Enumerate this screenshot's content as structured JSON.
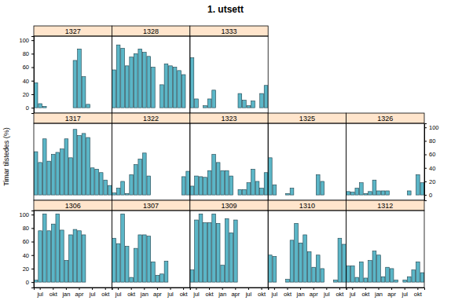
{
  "chart_data": {
    "type": "bar",
    "title": "1. utsett",
    "y_label": "Timar tilstedes (%)",
    "color": "#5bb6c7",
    "categories": [
      null,
      "jul",
      null,
      null,
      "okt",
      null,
      null,
      "jan",
      null,
      null,
      "apr",
      null,
      null,
      "jul",
      null,
      null,
      "okt",
      null
    ],
    "ylim": [
      -8,
      106
    ],
    "yticks": [
      0,
      20,
      40,
      60,
      80,
      100
    ],
    "panels": [
      {
        "name": "1327",
        "values": [
          37,
          6,
          2,
          null,
          null,
          null,
          null,
          null,
          null,
          70,
          87,
          46,
          5,
          null,
          null,
          null,
          null,
          null
        ]
      },
      {
        "name": "1328",
        "values": [
          56,
          93,
          88,
          62,
          75,
          80,
          87,
          82,
          76,
          60,
          null,
          34,
          65,
          62,
          60,
          55,
          49,
          null
        ]
      },
      {
        "name": "1333",
        "values": [
          74,
          13,
          null,
          3,
          13,
          26,
          null,
          null,
          null,
          null,
          null,
          21,
          11,
          3,
          10,
          null,
          21,
          33
        ]
      },
      {
        "name": "1317",
        "values": [
          64,
          48,
          83,
          50,
          60,
          63,
          68,
          83,
          55,
          97,
          88,
          91,
          85,
          40,
          38,
          33,
          22,
          14
        ]
      },
      {
        "name": "1322",
        "values": [
          3,
          10,
          20,
          2,
          30,
          45,
          53,
          62,
          28,
          null,
          null,
          null,
          null,
          null,
          null,
          null,
          27,
          35
        ]
      },
      {
        "name": "1323",
        "values": [
          13,
          28,
          27,
          26,
          36,
          60,
          48,
          36,
          36,
          28,
          null,
          8,
          8,
          18,
          38,
          20,
          10,
          33
        ]
      },
      {
        "name": "1325",
        "values": [
          55,
          15,
          0,
          null,
          2,
          10,
          null,
          null,
          null,
          null,
          null,
          30,
          20,
          null,
          null,
          null,
          null,
          null
        ]
      },
      {
        "name": "1326",
        "values": [
          5,
          4,
          10,
          18,
          2,
          5,
          22,
          6,
          6,
          6,
          null,
          null,
          null,
          null,
          6,
          null,
          30,
          18
        ]
      },
      {
        "name": "1306",
        "values": [
          3,
          76,
          101,
          76,
          86,
          101,
          77,
          32,
          70,
          78,
          76,
          70,
          null,
          null,
          null,
          null,
          null,
          null
        ]
      },
      {
        "name": "1307",
        "values": [
          65,
          57,
          101,
          53,
          7,
          50,
          70,
          70,
          68,
          30,
          10,
          12,
          31,
          null,
          null,
          null,
          null,
          null
        ]
      },
      {
        "name": "1309",
        "values": [
          18,
          92,
          101,
          88,
          88,
          101,
          87,
          25,
          94,
          73,
          92,
          null,
          null,
          null,
          null,
          null,
          null,
          null
        ]
      },
      {
        "name": "1310",
        "values": [
          40,
          38,
          null,
          null,
          4,
          62,
          87,
          58,
          70,
          45,
          22,
          40,
          20,
          null,
          null,
          3,
          65,
          56
        ]
      },
      {
        "name": "1312",
        "values": [
          24,
          24,
          7,
          30,
          6,
          32,
          46,
          40,
          8,
          22,
          20,
          3,
          null,
          3,
          8,
          18,
          30,
          14
        ]
      }
    ]
  }
}
